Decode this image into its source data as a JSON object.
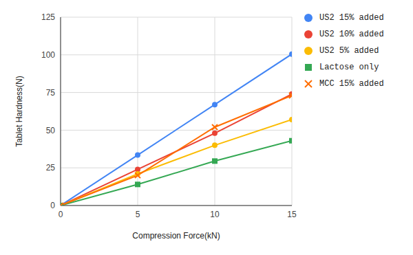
{
  "chart_data": {
    "type": "line",
    "x_label": "Compression Force(kN)",
    "y_label": "Tablet Hardness(N)",
    "x": [
      0,
      5,
      10,
      15
    ],
    "xlim": [
      0,
      15
    ],
    "xticks": [
      0,
      5,
      10,
      15
    ],
    "ylim": [
      0,
      125
    ],
    "yticks": [
      0,
      25,
      50,
      75,
      100,
      125
    ],
    "grid": true,
    "legend": "right",
    "series": [
      {
        "name": "US2 15% added",
        "color": "#4285f4",
        "marker": "circle",
        "values": [
          0,
          33.5,
          67,
          100.5
        ]
      },
      {
        "name": "US2 10% added",
        "color": "#ea4335",
        "marker": "circle",
        "values": [
          0,
          24,
          48,
          74
        ]
      },
      {
        "name": "US2 5% added",
        "color": "#fbbc04",
        "marker": "circle",
        "values": [
          0,
          21,
          40,
          57
        ]
      },
      {
        "name": "Lactose only",
        "color": "#34a853",
        "marker": "square",
        "values": [
          0,
          14,
          29.5,
          43
        ]
      },
      {
        "name": "MCC 15% added",
        "color": "#ff6d01",
        "marker": "x",
        "values": [
          0,
          20,
          52,
          73
        ]
      }
    ]
  }
}
